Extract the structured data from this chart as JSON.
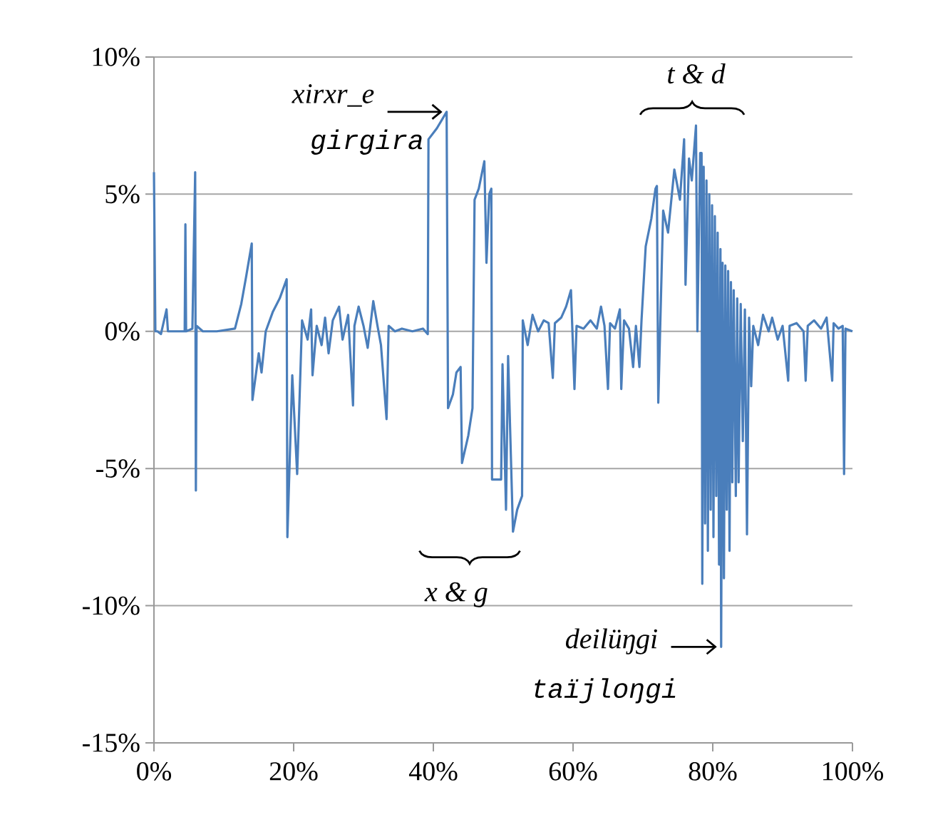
{
  "chart_data": {
    "type": "line",
    "x": [
      0,
      0.2,
      0.5,
      1.0,
      1.8,
      2.0,
      3.5,
      4.4,
      4.5,
      4.6,
      5.5,
      5.9,
      6.0,
      6.1,
      7,
      9,
      11.6,
      12.5,
      13.2,
      14.0,
      14.1,
      15.0,
      15.4,
      16,
      17,
      18,
      19.0,
      19.1,
      19.8,
      20.5,
      21.2,
      22.0,
      22.5,
      22.7,
      23.3,
      24.0,
      24.5,
      25.0,
      25.6,
      26.5,
      27,
      27.8,
      28.5,
      28.7,
      29.3,
      30,
      30.6,
      31.4,
      32,
      32.5,
      33.3,
      33.6,
      34.5,
      35.5,
      37,
      38.5,
      39.2,
      39.3,
      40.5,
      41.9,
      42.1,
      42.8,
      43.3,
      43.9,
      44.1,
      45.0,
      45.6,
      45.9,
      46.5,
      47.3,
      47.6,
      48.0,
      48.3,
      48.4,
      49.7,
      49.9,
      50.4,
      50.7,
      51.4,
      52.0,
      52.7,
      52.8,
      53.5,
      54.2,
      55,
      55.8,
      56.5,
      57.1,
      57.4,
      58.3,
      59.0,
      59.7,
      60.2,
      60.5,
      61.5,
      62.5,
      63.4,
      64.0,
      64.5,
      65.0,
      65.3,
      66.0,
      66.7,
      66.9,
      67.3,
      68.0,
      68.6,
      69.0,
      69.5,
      69.8,
      70.4,
      71.2,
      71.8,
      72.0,
      72.2,
      72.9,
      73.6,
      74.5,
      75.3,
      75.9,
      76.1,
      76.6,
      77.0,
      77.6,
      77.8,
      78.2,
      78.4,
      78.5,
      78.7,
      78.9,
      79.1,
      79.3,
      79.5,
      79.7,
      79.9,
      80.1,
      80.3,
      80.5,
      80.7,
      80.9,
      81.1,
      81.2,
      81.4,
      81.6,
      81.8,
      82.0,
      82.2,
      82.4,
      82.6,
      82.8,
      83.0,
      83.3,
      83.5,
      83.7,
      84.0,
      84.3,
      84.6,
      84.9,
      85.2,
      85.5,
      85.8,
      86.5,
      87.2,
      88,
      88.5,
      89.3,
      90.0,
      90.8,
      91.0,
      92.0,
      93.0,
      93.3,
      93.6,
      94.5,
      95.5,
      96.3,
      97.1,
      97.3,
      98.0,
      98.6,
      98.8,
      99.0,
      100
    ],
    "values": [
      5.8,
      0,
      0,
      -0.1,
      0.8,
      0,
      0,
      0,
      3.9,
      0,
      0.1,
      5.8,
      -5.8,
      0.2,
      0,
      0,
      0.1,
      1.0,
      2.0,
      3.2,
      -2.5,
      -0.8,
      -1.5,
      0,
      0.7,
      1.2,
      1.9,
      -7.5,
      -1.6,
      -5.2,
      0.4,
      -0.3,
      0.8,
      -1.6,
      0.2,
      -0.5,
      0.5,
      -0.8,
      0.4,
      0.9,
      -0.3,
      0.6,
      -2.7,
      0.2,
      0.9,
      0.2,
      -0.6,
      1.1,
      0.2,
      -0.5,
      -3.2,
      0.2,
      0,
      0.1,
      0,
      0.1,
      -0.1,
      7.0,
      7.4,
      8.0,
      -2.8,
      -2.3,
      -1.5,
      -1.3,
      -4.8,
      -3.8,
      -2.8,
      4.8,
      5.2,
      6.2,
      2.5,
      5.0,
      5.2,
      -5.4,
      -5.4,
      -1.2,
      -6.5,
      -0.9,
      -7.3,
      -6.5,
      -6.0,
      0.4,
      -0.5,
      0.6,
      0,
      0.4,
      0.3,
      -1.7,
      0.3,
      0.5,
      0.9,
      1.5,
      -2.1,
      0.2,
      0.1,
      0.4,
      0.1,
      0.9,
      0.2,
      -2.1,
      0.3,
      0.1,
      0.8,
      -2.1,
      0.4,
      0.1,
      -1.3,
      0.2,
      -1.3,
      0.4,
      3.1,
      4.1,
      5.2,
      5.3,
      -2.6,
      4.4,
      3.6,
      5.9,
      4.8,
      7.0,
      1.7,
      6.3,
      5.5,
      7.5,
      0,
      6.5,
      6.5,
      -9.2,
      6.0,
      -7.0,
      5.5,
      -8.0,
      5.0,
      -6.5,
      4.6,
      -7.5,
      4.2,
      -6.0,
      3.6,
      -8.5,
      3.0,
      -11.5,
      2.5,
      -9.0,
      2.4,
      -6.5,
      2.2,
      -8.0,
      1.8,
      -5.5,
      1.5,
      -6.0,
      1.2,
      -5.5,
      1.0,
      -4.0,
      0.8,
      -7.4,
      0.5,
      -2.0,
      0.2,
      -0.5,
      0.6,
      0,
      0.5,
      -0.3,
      0.2,
      -1.8,
      0.2,
      0.3,
      0,
      -1.8,
      0.2,
      0.4,
      0.1,
      0.5,
      -1.8,
      0.3,
      0.1,
      0.2,
      -5.2,
      0.1,
      0
    ],
    "color": "#4a7ebb",
    "xlim": [
      0,
      100
    ],
    "ylim": [
      -15,
      10
    ],
    "xticks": [
      {
        "value": 0,
        "label": "0%"
      },
      {
        "value": 20,
        "label": "20%"
      },
      {
        "value": 40,
        "label": "40%"
      },
      {
        "value": 60,
        "label": "60%"
      },
      {
        "value": 80,
        "label": "80%"
      },
      {
        "value": 100,
        "label": "100%"
      }
    ],
    "yticks": [
      {
        "value": -15,
        "label": "-15%"
      },
      {
        "value": -10,
        "label": "-10%"
      },
      {
        "value": -5,
        "label": "-5%"
      },
      {
        "value": 0,
        "label": "0%"
      },
      {
        "value": 5,
        "label": "5%"
      },
      {
        "value": 10,
        "label": "10%"
      }
    ],
    "grid": "y",
    "annotations": [
      {
        "text": "xirxr_e",
        "x": 41.9,
        "y": 8.0
      },
      "girgira",
      "t & d",
      "x & g",
      {
        "text": "deilüŋgi",
        "x": 81.2,
        "y": -11.5
      },
      "taïjloŋgi"
    ]
  }
}
